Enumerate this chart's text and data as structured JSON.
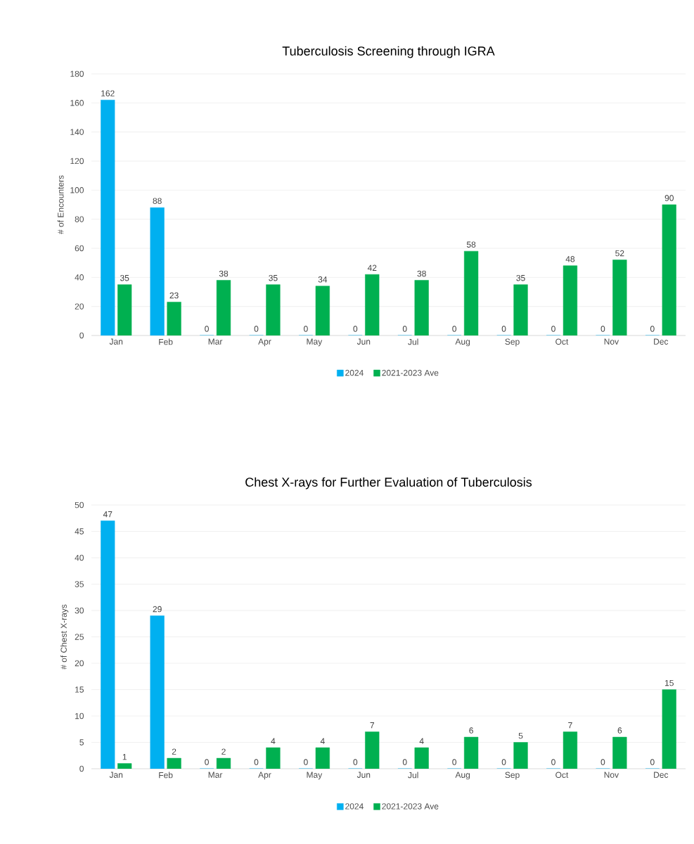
{
  "chart_data": [
    {
      "type": "bar",
      "title": "Tuberculosis Screening through IGRA",
      "ylabel": "# of Encounters",
      "categories": [
        "Jan",
        "Feb",
        "Mar",
        "Apr",
        "May",
        "Jun",
        "Jul",
        "Aug",
        "Sep",
        "Oct",
        "Nov",
        "Dec"
      ],
      "series": [
        {
          "name": "2024",
          "color": "#00b0f0",
          "values": [
            162,
            88,
            0,
            0,
            0,
            0,
            0,
            0,
            0,
            0,
            0,
            0
          ]
        },
        {
          "name": "2021-2023 Ave",
          "color": "#00b050",
          "values": [
            35,
            23,
            38,
            35,
            34,
            42,
            38,
            58,
            35,
            48,
            52,
            90
          ]
        }
      ],
      "ylim": [
        0,
        180
      ],
      "yticks": [
        0,
        20,
        40,
        60,
        80,
        100,
        120,
        140,
        160,
        180
      ],
      "grid": "y",
      "legend": "bottom",
      "data_labels": true
    },
    {
      "type": "bar",
      "title": "Chest X-rays for Further Evaluation of Tuberculosis",
      "ylabel": "# of Chest X-rays",
      "categories": [
        "Jan",
        "Feb",
        "Mar",
        "Apr",
        "May",
        "Jun",
        "Jul",
        "Aug",
        "Sep",
        "Oct",
        "Nov",
        "Dec"
      ],
      "series": [
        {
          "name": "2024",
          "color": "#00b0f0",
          "values": [
            47,
            29,
            0,
            0,
            0,
            0,
            0,
            0,
            0,
            0,
            0,
            0
          ]
        },
        {
          "name": "2021-2023 Ave",
          "color": "#00b050",
          "values": [
            1,
            2,
            2,
            4,
            4,
            7,
            4,
            6,
            5,
            7,
            6,
            15
          ]
        }
      ],
      "ylim": [
        0,
        50
      ],
      "yticks": [
        0,
        5,
        10,
        15,
        20,
        25,
        30,
        35,
        40,
        45,
        50
      ],
      "grid": "y",
      "legend": "bottom",
      "data_labels": true
    }
  ]
}
